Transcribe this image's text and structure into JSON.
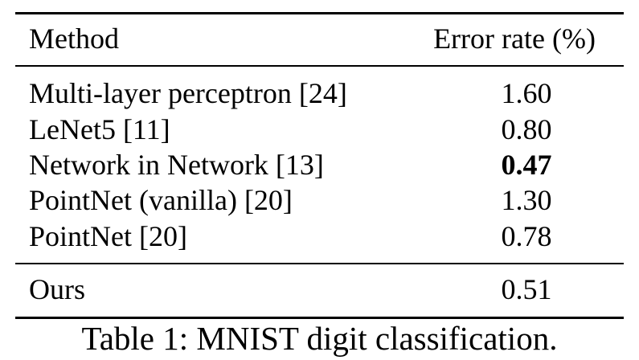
{
  "table": {
    "headers": {
      "method": "Method",
      "error": "Error rate (%)"
    },
    "rows": [
      {
        "method": "Multi-layer perceptron [24]",
        "error": "1.60",
        "bold": false
      },
      {
        "method": "LeNet5 [11]",
        "error": "0.80",
        "bold": false
      },
      {
        "method": "Network in Network [13]",
        "error": "0.47",
        "bold": true
      },
      {
        "method": "PointNet (vanilla) [20]",
        "error": "1.30",
        "bold": false
      },
      {
        "method": "PointNet [20]",
        "error": "0.78",
        "bold": false
      }
    ],
    "ours": {
      "method": "Ours",
      "error": "0.51"
    }
  },
  "caption": "Table 1: MNIST digit classification."
}
